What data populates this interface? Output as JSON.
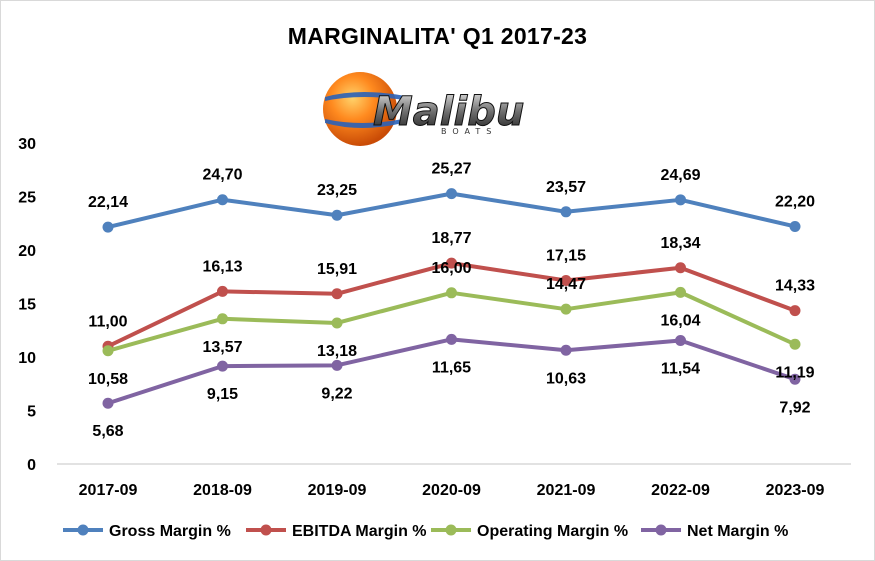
{
  "chart_data": {
    "type": "line",
    "title": "MARGINALITA' Q1 2017-23",
    "categories": [
      "2017-09",
      "2018-09",
      "2019-09",
      "2020-09",
      "2021-09",
      "2022-09",
      "2023-09"
    ],
    "ylim": [
      0,
      30
    ],
    "yticks": [
      "0",
      "5",
      "10",
      "15",
      "20",
      "25",
      "30"
    ],
    "grid": false,
    "legend_position": "bottom",
    "series": [
      {
        "name": "Gross Margin %",
        "color": "#4f81bd",
        "values": [
          22.14,
          24.7,
          23.25,
          25.27,
          23.57,
          24.69,
          22.2
        ],
        "labels": [
          "22,14",
          "24,70",
          "23,25",
          "25,27",
          "23,57",
          "24,69",
          "22,20"
        ],
        "label_pos": [
          "above",
          "above",
          "above",
          "above",
          "above",
          "above",
          "above"
        ]
      },
      {
        "name": "EBITDA Margin %",
        "color": "#c0504d",
        "values": [
          11.0,
          16.13,
          15.91,
          18.77,
          17.15,
          18.34,
          14.33
        ],
        "labels": [
          "11,00",
          "16,13",
          "15,91",
          "18,77",
          "17,15",
          "18,34",
          "14,33"
        ],
        "label_pos": [
          "above",
          "above",
          "above",
          "above",
          "above",
          "above",
          "above"
        ]
      },
      {
        "name": "Operating Margin %",
        "color": "#9bbb59",
        "values": [
          10.58,
          13.57,
          13.18,
          16.0,
          14.47,
          16.04,
          11.19
        ],
        "labels": [
          "10,58",
          "13,57",
          "13,18",
          "16,00",
          "14,47",
          "16,04",
          "11,19"
        ],
        "label_pos": [
          "below",
          "below",
          "below",
          "above",
          "above",
          "below",
          "below"
        ]
      },
      {
        "name": "Net Margin %",
        "color": "#8064a2",
        "values": [
          5.68,
          9.15,
          9.22,
          11.65,
          10.63,
          11.54,
          7.92
        ],
        "labels": [
          "5,68",
          "9,15",
          "9,22",
          "11,65",
          "10,63",
          "11,54",
          "7,92"
        ],
        "label_pos": [
          "below",
          "below",
          "below",
          "below",
          "below",
          "below",
          "below"
        ]
      }
    ]
  },
  "logo": {
    "brand": "Malibu",
    "sub": "BOATS",
    "name": "malibu-boats-logo"
  }
}
